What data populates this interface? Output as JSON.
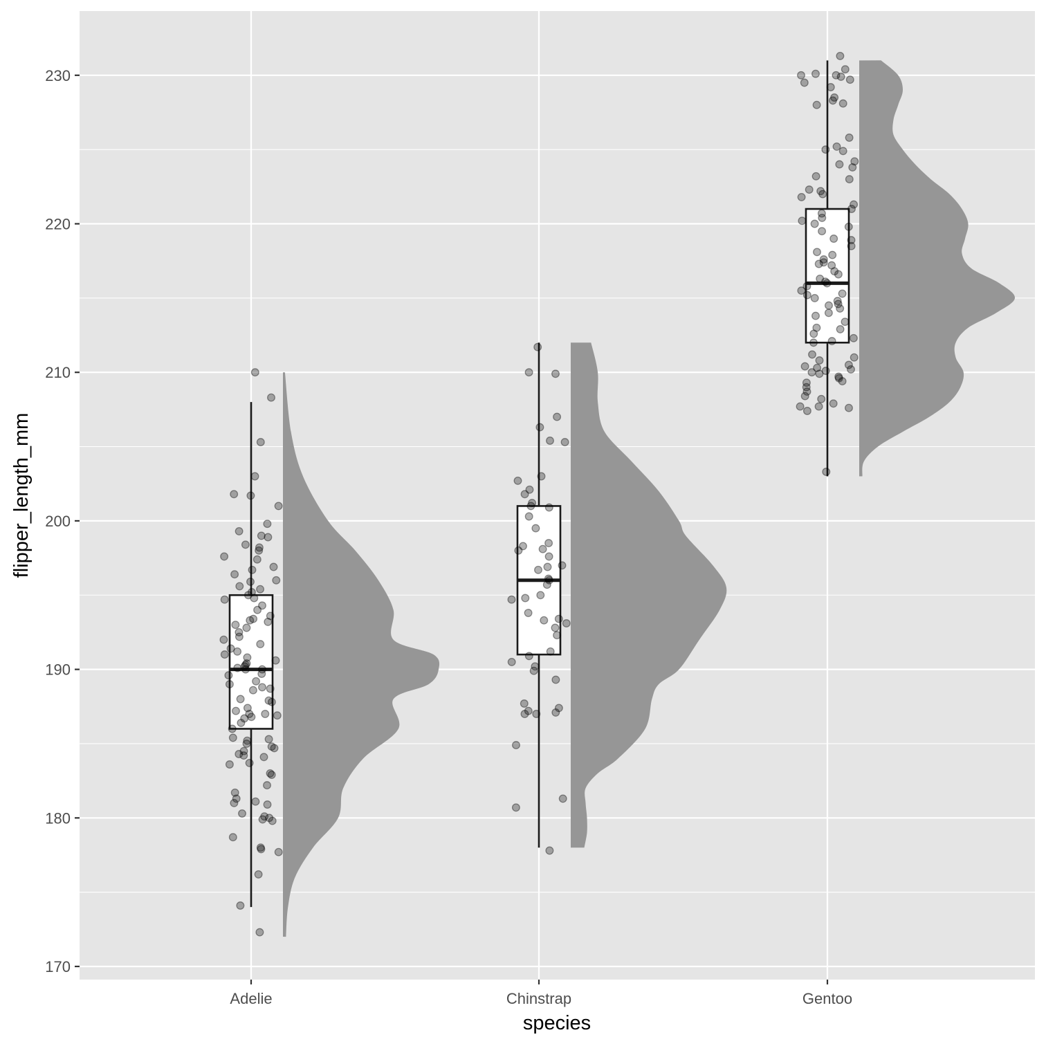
{
  "chart_data": {
    "type": "raincloud",
    "title": "",
    "xlabel": "species",
    "ylabel": "flipper_length_mm",
    "ylim": [
      169.6,
      234.3
    ],
    "y_ticks": [
      170,
      180,
      190,
      200,
      210,
      220,
      230
    ],
    "y_minor_ticks": [
      175,
      185,
      195,
      205,
      215,
      225
    ],
    "categories": [
      "Adelie",
      "Chinstrap",
      "Gentoo"
    ],
    "grid": true,
    "legend": "none",
    "colors": {
      "panel": "#e5e5e5",
      "grid": "#ffffff",
      "density": "#969696",
      "box_fill": "#ffffff",
      "box_line": "#1a1a1a",
      "point": "#000000"
    },
    "series": [
      {
        "category": "Adelie",
        "box": {
          "min": 174,
          "q1": 186,
          "median": 190,
          "q3": 195,
          "max": 208
        },
        "density": {
          "range": [
            172,
            210
          ],
          "y": [
            172,
            174,
            176,
            178,
            180,
            182,
            184,
            186,
            188,
            189,
            190,
            191,
            192,
            194,
            196,
            198,
            200,
            203,
            206,
            210
          ],
          "d": [
            0.03,
            0.05,
            0.12,
            0.3,
            0.55,
            0.6,
            0.8,
            1.15,
            1.1,
            1.45,
            1.55,
            1.5,
            1.1,
            1.1,
            0.95,
            0.72,
            0.45,
            0.2,
            0.08,
            0.02
          ]
        },
        "points": [
          172.3,
          174.1,
          176.2,
          177.7,
          177.9,
          178,
          178.7,
          179.8,
          179.9,
          180,
          180.1,
          180.3,
          180.9,
          181,
          181.1,
          181.3,
          181.7,
          182.2,
          182.9,
          183,
          183.6,
          183.7,
          184.1,
          184.2,
          184.3,
          184.5,
          184.7,
          184.8,
          185,
          185.2,
          185.3,
          185.4,
          186,
          186.4,
          186.7,
          186.8,
          186.9,
          187,
          187,
          187.2,
          187.4,
          187.8,
          187.9,
          188,
          188.6,
          188.7,
          188.8,
          189,
          189.2,
          189.6,
          189.7,
          190,
          190,
          190.1,
          190.2,
          190.3,
          190.4,
          190.6,
          190.8,
          191,
          191.2,
          191.4,
          191.7,
          192,
          192.2,
          192.5,
          192.8,
          193,
          193.2,
          193.3,
          193.4,
          193.6,
          194,
          194.3,
          194.7,
          194.8,
          195,
          195.2,
          195.4,
          195.6,
          195.9,
          196,
          196.4,
          196.7,
          196.9,
          197.4,
          197.6,
          198,
          198.2,
          198.4,
          198.9,
          199,
          199.3,
          199.8,
          201,
          201.7,
          201.8,
          203,
          205.3,
          208.3,
          210
        ]
      },
      {
        "category": "Chinstrap",
        "box": {
          "min": 178,
          "q1": 191,
          "median": 196,
          "q3": 201,
          "max": 212
        },
        "density": {
          "range": [
            178,
            212
          ],
          "y": [
            178,
            179,
            180,
            181,
            182,
            183,
            184,
            186,
            188,
            189,
            190,
            192,
            194,
            195.5,
            197,
            199,
            200,
            202,
            204,
            206,
            208,
            210,
            212
          ],
          "d": [
            0.1,
            0.12,
            0.12,
            0.11,
            0.11,
            0.2,
            0.35,
            0.55,
            0.6,
            0.65,
            0.8,
            0.95,
            1.1,
            1.15,
            1.05,
            0.85,
            0.8,
            0.65,
            0.45,
            0.25,
            0.2,
            0.2,
            0.15
          ]
        },
        "points": [
          177.8,
          180.7,
          181.3,
          184.9,
          187,
          187,
          187.1,
          187.2,
          187.4,
          187.7,
          189.3,
          189.9,
          190.2,
          190.5,
          190.9,
          191.2,
          192.3,
          192.8,
          193.1,
          193.3,
          193.4,
          193.8,
          194.7,
          194.8,
          195,
          195.7,
          196,
          196.1,
          196.7,
          196.9,
          197,
          197.6,
          198,
          198.1,
          198.3,
          198.5,
          199.5,
          200.3,
          200.9,
          201,
          201.2,
          201.8,
          202.1,
          202.7,
          203,
          205.3,
          205.4,
          206.3,
          207,
          209.9,
          210,
          211.7
        ]
      },
      {
        "category": "Gentoo",
        "box": {
          "min": 203,
          "q1": 212,
          "median": 216,
          "q3": 221,
          "max": 231
        },
        "density": {
          "range": [
            203,
            231
          ],
          "y": [
            203,
            204,
            205,
            206,
            207,
            208,
            209,
            210,
            211,
            212,
            213,
            214,
            215,
            216,
            217,
            218,
            219,
            220,
            221,
            222,
            223,
            224,
            225,
            226,
            227,
            228,
            229,
            230,
            231
          ],
          "d": [
            0.02,
            0.03,
            0.12,
            0.28,
            0.45,
            0.58,
            0.65,
            0.67,
            0.62,
            0.62,
            0.7,
            0.88,
            1.0,
            0.9,
            0.72,
            0.66,
            0.68,
            0.7,
            0.66,
            0.58,
            0.46,
            0.36,
            0.28,
            0.22,
            0.22,
            0.25,
            0.28,
            0.25,
            0.14
          ]
        },
        "points": [
          203.3,
          207.4,
          207.6,
          207.7,
          207.7,
          207.9,
          208.2,
          208.4,
          208.7,
          209,
          209.3,
          209.4,
          209.6,
          209.7,
          209.9,
          210,
          210.1,
          210.2,
          210.3,
          210.4,
          210.5,
          210.8,
          211,
          211.2,
          212,
          212.1,
          212.3,
          212.6,
          212.9,
          213,
          213.4,
          213.8,
          214,
          214.3,
          214.5,
          214.6,
          214.8,
          215,
          215.2,
          215.3,
          215.5,
          215.8,
          216,
          216.1,
          216.3,
          216.6,
          216.8,
          217.2,
          217.3,
          217.4,
          217.6,
          217.9,
          218.1,
          218.5,
          218.9,
          219,
          219.5,
          219.8,
          220,
          220.2,
          220.4,
          220.7,
          221,
          221.3,
          221.8,
          222,
          222.2,
          222.3,
          223,
          223.2,
          223.8,
          224,
          224.2,
          224.9,
          225,
          225.2,
          225.8,
          228,
          228.1,
          228.3,
          228.5,
          229.2,
          229.5,
          229.7,
          229.9,
          230,
          230,
          230.1,
          230.4,
          231.3
        ]
      }
    ]
  }
}
